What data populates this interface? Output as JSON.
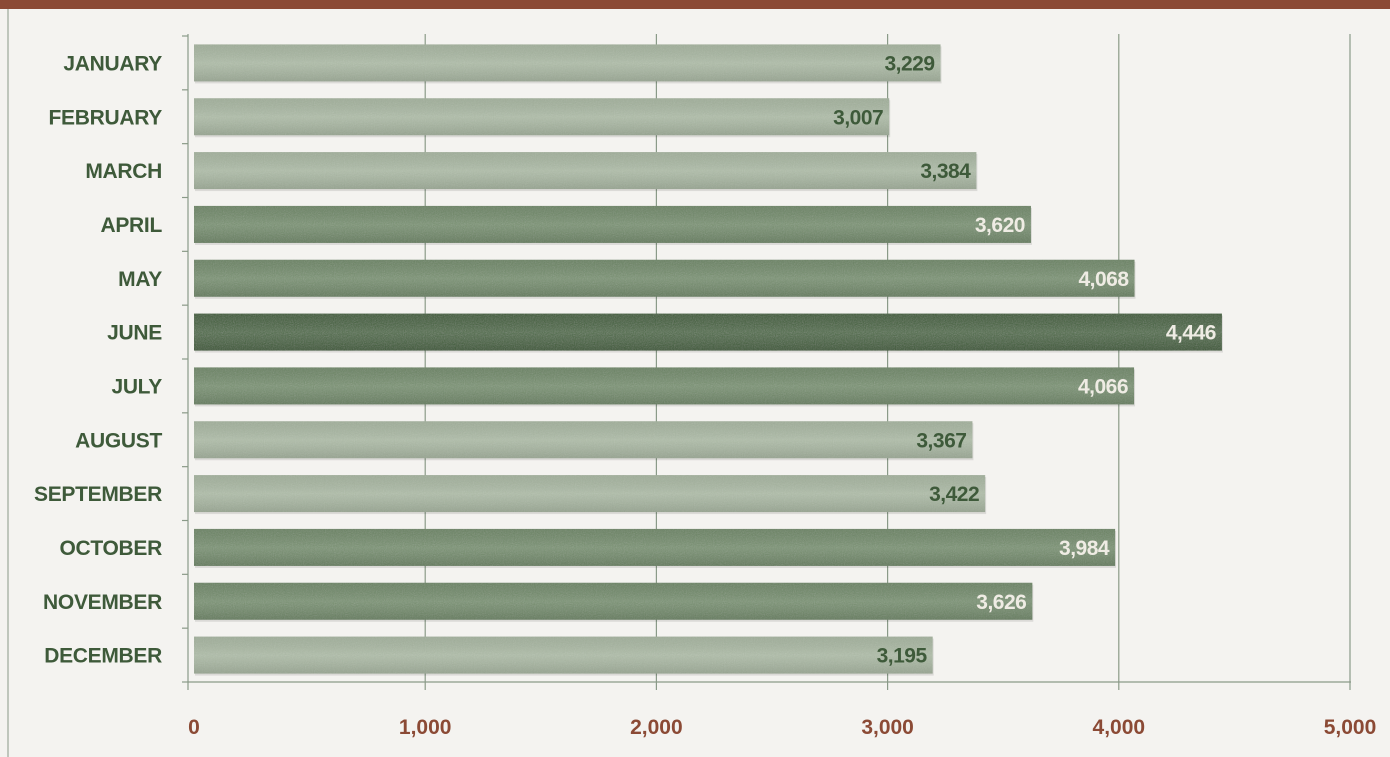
{
  "chart_data": {
    "type": "bar",
    "orientation": "horizontal",
    "categories": [
      "JANUARY",
      "FEBRUARY",
      "MARCH",
      "APRIL",
      "MAY",
      "JUNE",
      "JULY",
      "AUGUST",
      "SEPTEMBER",
      "OCTOBER",
      "NOVEMBER",
      "DECEMBER"
    ],
    "values": [
      3229,
      3007,
      3384,
      3620,
      4068,
      4446,
      4066,
      3367,
      3422,
      3984,
      3626,
      3195
    ],
    "value_labels": [
      "3,229",
      "3,007",
      "3,384",
      "3,620",
      "4,068",
      "4,446",
      "4,066",
      "3,367",
      "3,422",
      "3,984",
      "3,626",
      "3,195"
    ],
    "x_ticks": [
      "0",
      "1,000",
      "2,000",
      "3,000",
      "4,000",
      "5,000"
    ],
    "x_tick_values": [
      0,
      1000,
      2000,
      3000,
      4000,
      5000
    ],
    "xlim": [
      0,
      5000
    ],
    "title": "",
    "xlabel": "",
    "ylabel": "",
    "grid": "vertical",
    "legend": "none",
    "colors": {
      "header_bar": "#8b4a35",
      "background": "#f4f3f0",
      "category_text": "#3e5a3a",
      "tick_text": "#8b4a35",
      "grid_line": "#8a9a88",
      "bar_light": "#a9b8a2",
      "bar_medium": "#6f8a68",
      "bar_dark": "#3f6038",
      "label_on_light": "#3e5a3a",
      "label_on_dark": "#efece4"
    }
  }
}
